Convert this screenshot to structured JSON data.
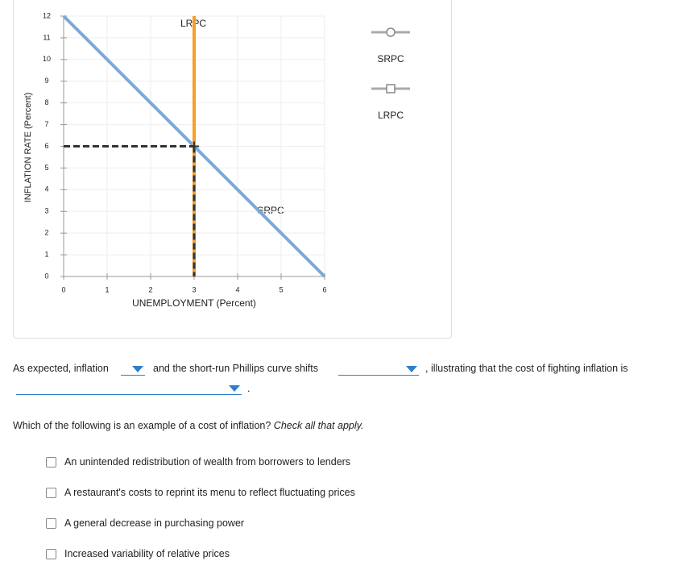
{
  "chart_data": {
    "type": "line",
    "xlabel": "UNEMPLOYMENT (Percent)",
    "ylabel": "INFLATION RATE (Percent)",
    "xlim": [
      0,
      6
    ],
    "ylim": [
      0,
      12
    ],
    "xticks": [
      0,
      1,
      2,
      3,
      4,
      5,
      6
    ],
    "yticks": [
      0,
      1,
      2,
      3,
      4,
      5,
      6,
      7,
      8,
      9,
      10,
      11,
      12
    ],
    "grid": true,
    "series": [
      {
        "name": "SRPC",
        "color": "#7aaad5",
        "marker": "circle",
        "x": [
          0,
          6
        ],
        "values": [
          12,
          0
        ]
      },
      {
        "name": "LRPC",
        "color": "#f5a023",
        "marker": "square",
        "x": [
          3,
          3
        ],
        "values": [
          0,
          12
        ]
      }
    ],
    "annotations": [
      "LRPC",
      "SRPC"
    ],
    "guide_point": {
      "x": 3,
      "y": 6,
      "color": "#333333"
    }
  },
  "question1": {
    "parts": [
      "As expected, inflation",
      "and the short-run Phillips curve shifts",
      ", illustrating that the cost of fighting inflation is",
      "."
    ]
  },
  "question2": {
    "prompt": "Which of the following is an example of a cost of inflation?",
    "hint": "Check all that apply.",
    "options": [
      "An unintended redistribution of wealth from borrowers to lenders",
      "A restaurant's costs to reprint its menu to reflect fluctuating prices",
      "A general decrease in purchasing power",
      "Increased variability of relative prices"
    ]
  }
}
